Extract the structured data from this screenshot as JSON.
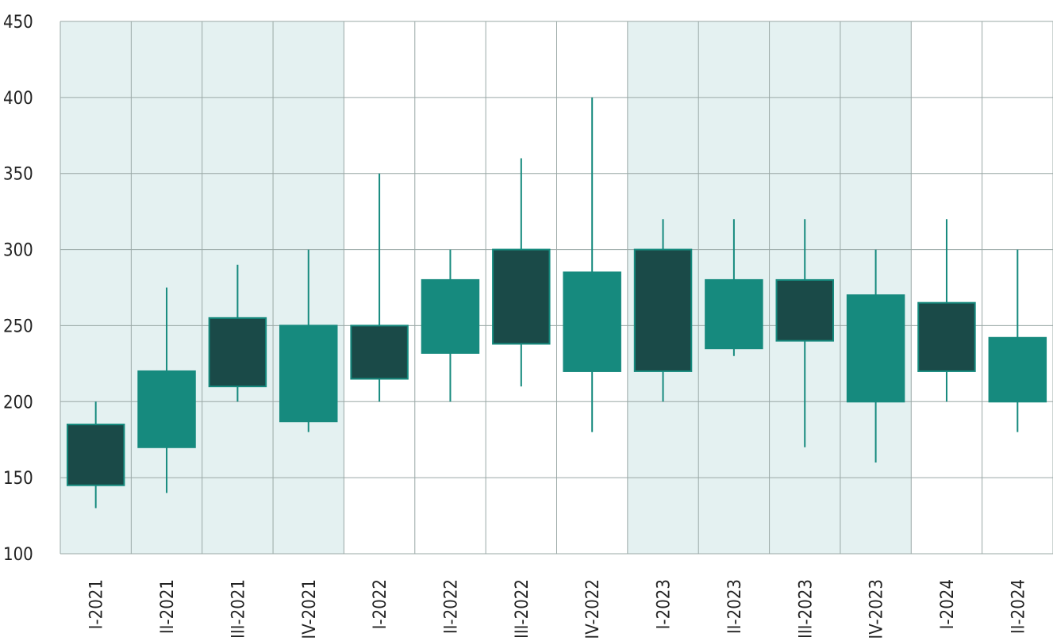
{
  "chart_data": {
    "type": "candlestick",
    "categories": [
      "I-2021",
      "II-2021",
      "III-2021",
      "IV-2021",
      "I-2022",
      "II-2022",
      "III-2022",
      "IV-2022",
      "I-2023",
      "II-2023",
      "III-2023",
      "IV-2023",
      "I-2024",
      "II-2024"
    ],
    "open": [
      185,
      170,
      255,
      187,
      250,
      232,
      300,
      220,
      300,
      235,
      280,
      200,
      265,
      200
    ],
    "high": [
      200,
      275,
      290,
      300,
      350,
      300,
      360,
      400,
      320,
      320,
      320,
      300,
      320,
      300
    ],
    "low": [
      130,
      140,
      200,
      180,
      200,
      200,
      210,
      180,
      200,
      230,
      170,
      160,
      200,
      180
    ],
    "close": [
      145,
      220,
      210,
      250,
      215,
      280,
      238,
      285,
      220,
      280,
      240,
      270,
      220,
      242
    ],
    "up_color": "#168a7e",
    "down_color": "#1a4a48",
    "ylim": [
      100,
      450
    ],
    "yticks": [
      100,
      150,
      200,
      250,
      300,
      350,
      400,
      450
    ],
    "grid": true
  }
}
